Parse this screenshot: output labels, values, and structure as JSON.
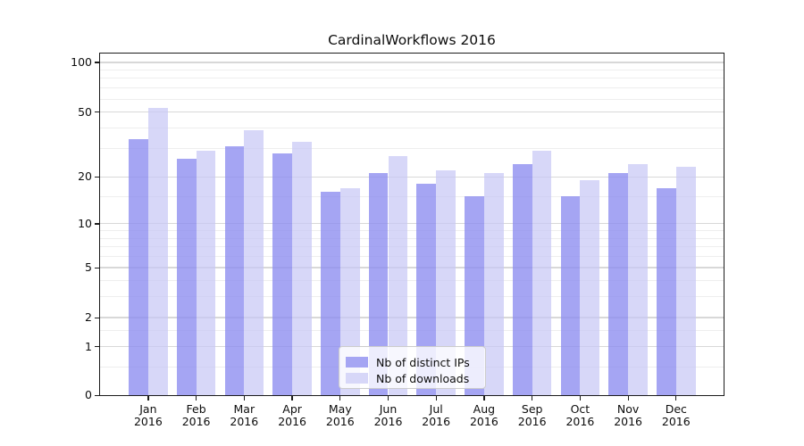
{
  "title": "CardinalWorkflows 2016",
  "chart_data": {
    "type": "bar",
    "categories": [
      "Jan 2016",
      "Feb 2016",
      "Mar 2016",
      "Apr 2016",
      "May 2016",
      "Jun 2016",
      "Jul 2016",
      "Aug 2016",
      "Sep 2016",
      "Oct 2016",
      "Nov 2016",
      "Dec 2016"
    ],
    "x_tick_months": [
      "Jan",
      "Feb",
      "Mar",
      "Apr",
      "May",
      "Jun",
      "Jul",
      "Aug",
      "Sep",
      "Oct",
      "Nov",
      "Dec"
    ],
    "x_tick_year": "2016",
    "series": [
      {
        "name": "Nb of distinct IPs",
        "color": "#a5a5f3",
        "bar_fill": "rgba(140,140,240,0.78)",
        "values": [
          34,
          26,
          31,
          28,
          16,
          21,
          18,
          15,
          24,
          15,
          21,
          17
        ]
      },
      {
        "name": "Nb of downloads",
        "color": "#d7d7f8",
        "bar_fill": "rgba(200,200,245,0.72)",
        "values": [
          53,
          29,
          39,
          33,
          17,
          27,
          22,
          21,
          29,
          19,
          24,
          23
        ]
      }
    ],
    "yscale": "log(1+y)",
    "ylim": [
      0,
      114
    ],
    "y_major_ticks": [
      0,
      1,
      2,
      5,
      10,
      20,
      50,
      100
    ],
    "y_minor_gridlines": [
      0.5,
      1.5,
      3,
      4,
      6,
      7,
      8,
      9,
      15,
      30,
      40,
      60,
      70,
      80,
      90
    ],
    "grid": true,
    "legend_position": "lower center"
  },
  "colors": {
    "grid_major": "#d8d8d8",
    "grid_minor": "#eeeeee",
    "spine": "#1c1c1c",
    "text": "#0d0d0d",
    "legend_border": "#cccccc",
    "background": "#ffffff"
  }
}
